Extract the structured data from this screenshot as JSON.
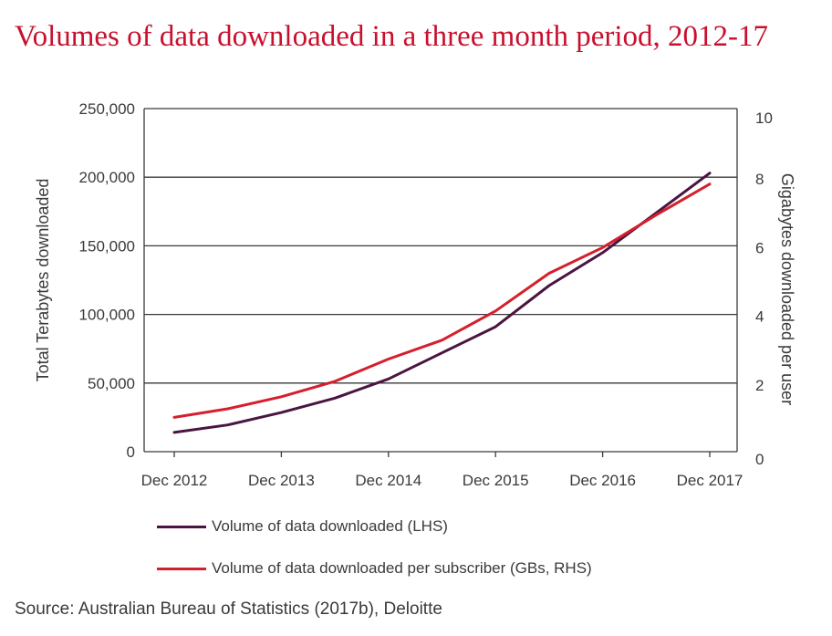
{
  "title": "Volumes of data downloaded in a three month period, 2012-17",
  "source": "Source: Australian Bureau of Statistics (2017b), Deloitte",
  "colors": {
    "lhs": "#4a1540",
    "rhs": "#d51f2d",
    "grid": "#3a3a3a"
  },
  "chart_data": {
    "type": "line",
    "title": "Volumes of data downloaded in a three month period, 2012-17",
    "x": [
      "Dec 2012",
      "Jun 2013",
      "Dec 2013",
      "Jun 2014",
      "Dec 2014",
      "Jun 2015",
      "Dec 2015",
      "Jun 2016",
      "Dec 2016",
      "Jun 2017",
      "Dec 2017"
    ],
    "xticklabels": [
      "Dec 2012",
      "Dec 2013",
      "Dec 2014",
      "Dec 2015",
      "Dec 2016",
      "Dec 2017"
    ],
    "ylabel": "Total Terabytes downloaded",
    "ylim": [
      0,
      250000
    ],
    "yticklabels": [
      "0",
      "50,000",
      "100,000",
      "150,000",
      "200,000",
      "250,000"
    ],
    "y2label": "Gigabytes downloaded per user",
    "y2lim": [
      0,
      10
    ],
    "y2ticklabels": [
      "0",
      "2",
      "4",
      "6",
      "8",
      "10"
    ],
    "grid": true,
    "legend_position": "bottom",
    "series": [
      {
        "name": "Volume of data downloaded (LHS)",
        "axis": "left",
        "color": "#4a1540",
        "values": [
          14000,
          19500,
          28500,
          39000,
          53000,
          72000,
          91000,
          121000,
          145000,
          174000,
          203000
        ]
      },
      {
        "name": "Volume of data downloaded per subscriber (GBs, RHS)",
        "axis": "right",
        "color": "#d51f2d",
        "values": [
          1.0,
          1.25,
          1.6,
          2.05,
          2.7,
          3.25,
          4.1,
          5.2,
          5.95,
          6.9,
          7.8
        ]
      }
    ]
  }
}
